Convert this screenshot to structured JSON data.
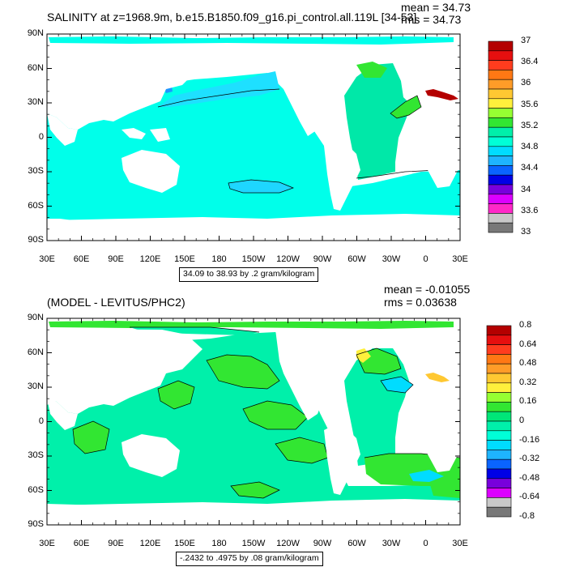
{
  "panels": [
    {
      "title": "SALINITY at z=1968.9m, b.e15.B1850.f09_g16.pi_control.all.119L [34-53]",
      "mean_text": "mean = 34.73",
      "rms_text": "rms = 34.73",
      "range_text": "34.09 to 38.93 by .2 gram/kilogram",
      "lat_labels": [
        "90N",
        "60N",
        "30N",
        "0",
        "30S",
        "60S",
        "90S"
      ],
      "lon_labels": [
        "30E",
        "60E",
        "90E",
        "120E",
        "150E",
        "180",
        "150W",
        "120W",
        "90W",
        "60W",
        "30W",
        "0",
        "30E"
      ],
      "colorbar": {
        "labels": [
          "37",
          "36.4",
          "36",
          "35.6",
          "35.2",
          "34.8",
          "34.4",
          "34",
          "33.6",
          "33"
        ],
        "colors": [
          "#b40000",
          "#e60f0f",
          "#ff3c1e",
          "#ff7814",
          "#ff9c28",
          "#ffc832",
          "#fff03c",
          "#96ff32",
          "#32e632",
          "#00f0aa",
          "#00ffd7",
          "#00dcff",
          "#1eb4ff",
          "#0a64ff",
          "#0000e6",
          "#7800dc",
          "#dc00ff",
          "#ff28c8",
          "#c8c8c8",
          "#787878"
        ]
      }
    },
    {
      "title": "(MODEL - LEVITUS/PHC2)",
      "mean_text": "mean = -0.01055",
      "rms_text": "rms = 0.03638",
      "range_text": "-.2432 to .4975 by .08 gram/kilogram",
      "lat_labels": [
        "90N",
        "60N",
        "30N",
        "0",
        "30S",
        "60S",
        "90S"
      ],
      "lon_labels": [
        "30E",
        "60E",
        "90E",
        "120E",
        "150E",
        "180",
        "150W",
        "120W",
        "90W",
        "60W",
        "30W",
        "0",
        "30E"
      ],
      "colorbar": {
        "labels": [
          "0.8",
          "0.64",
          "0.48",
          "0.32",
          "0.16",
          "0",
          "-0.16",
          "-0.32",
          "-0.48",
          "-0.64",
          "-0.8"
        ],
        "colors": [
          "#b40000",
          "#e60f0f",
          "#ff3c1e",
          "#ff7814",
          "#ff9c28",
          "#ffc832",
          "#fff03c",
          "#96ff32",
          "#32e632",
          "#00e678",
          "#00f0aa",
          "#00ffd7",
          "#00dcff",
          "#1eb4ff",
          "#0a64ff",
          "#0000e6",
          "#7800dc",
          "#dc00ff",
          "#c8c8c8",
          "#787878"
        ]
      }
    }
  ]
}
